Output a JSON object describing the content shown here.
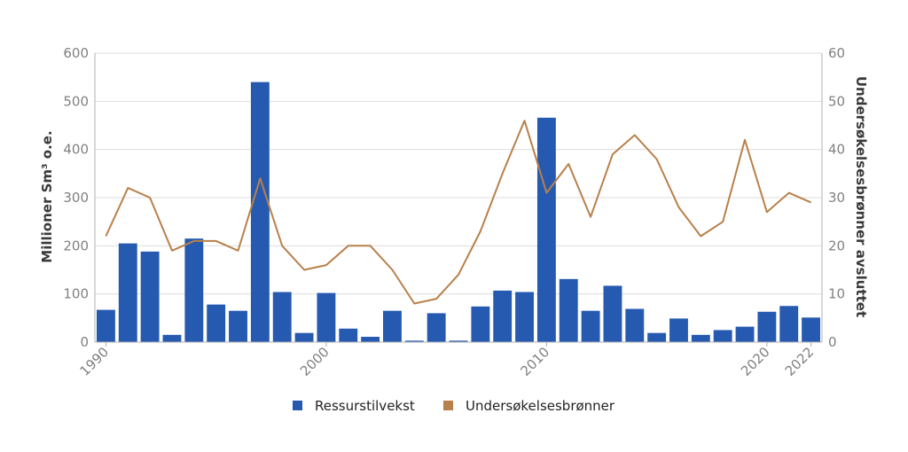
{
  "chart_data": {
    "type": "bar",
    "x": [
      1990,
      1991,
      1992,
      1993,
      1994,
      1995,
      1996,
      1997,
      1998,
      1999,
      2000,
      2001,
      2002,
      2003,
      2004,
      2005,
      2006,
      2007,
      2008,
      2009,
      2010,
      2011,
      2012,
      2013,
      2014,
      2015,
      2016,
      2017,
      2018,
      2019,
      2020,
      2021,
      2022
    ],
    "x_ticks": [
      1990,
      2000,
      2010,
      2020,
      2022
    ],
    "series": [
      {
        "name": "Ressurstilvekst",
        "type": "bar",
        "axis": "left",
        "color": "#255ab0",
        "values": [
          67,
          205,
          188,
          15,
          215,
          78,
          65,
          540,
          104,
          19,
          102,
          28,
          11,
          65,
          3,
          60,
          3,
          74,
          107,
          104,
          466,
          131,
          65,
          117,
          69,
          19,
          49,
          15,
          25,
          32,
          63,
          75,
          51
        ]
      },
      {
        "name": "Undersøkelsesbrønner",
        "type": "line",
        "axis": "right",
        "color": "#b8804a",
        "values": [
          22,
          32,
          30,
          19,
          21,
          21,
          19,
          34,
          20,
          15,
          16,
          20,
          20,
          15,
          8,
          9,
          14,
          23,
          35,
          46,
          31,
          37,
          26,
          39,
          43,
          38,
          28,
          22,
          25,
          42,
          27,
          31,
          29
        ]
      }
    ],
    "ylabel": "Millioner Sm³ o.e.",
    "ylabel_right": "Undersøkelsesbrønner avsluttet",
    "ylim": [
      0,
      600
    ],
    "yticks": [
      0,
      100,
      200,
      300,
      400,
      500,
      600
    ],
    "ylim_right": [
      0,
      60
    ],
    "yticks_right": [
      0,
      10,
      20,
      30,
      40,
      50,
      60
    ],
    "grid": true,
    "legend_position": "bottom-center"
  }
}
